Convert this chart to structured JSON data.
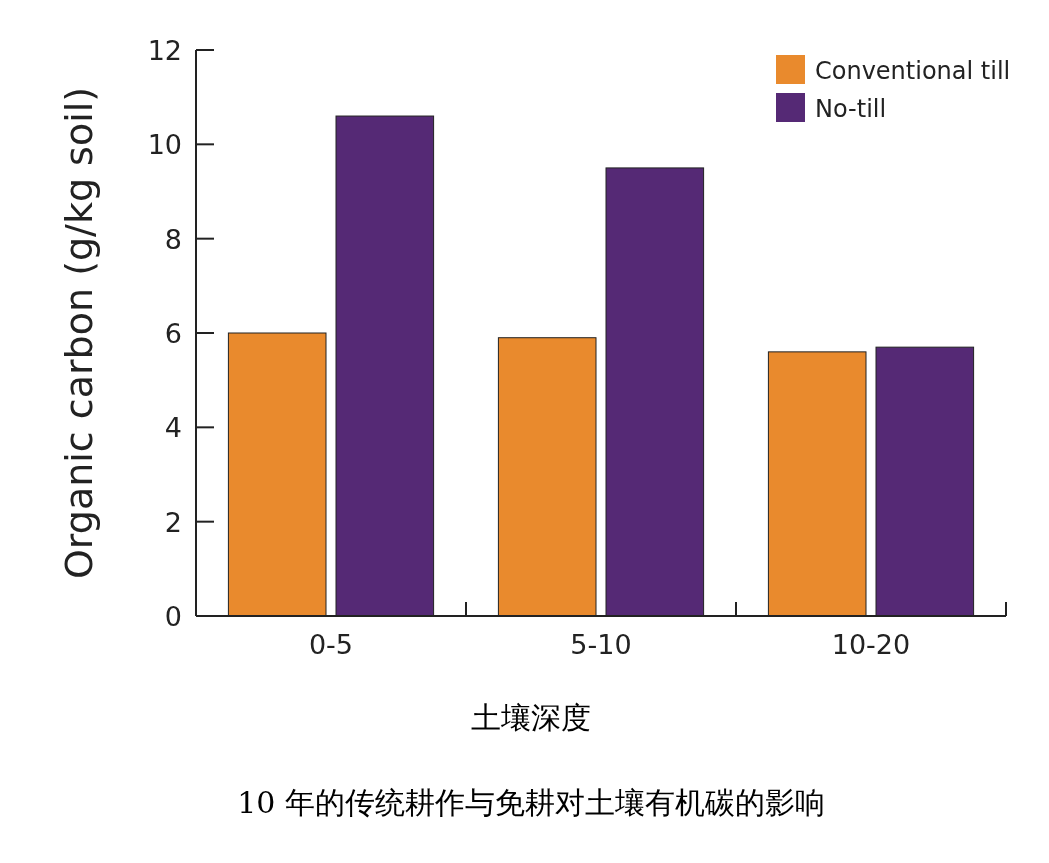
{
  "chart_data": {
    "type": "bar",
    "title": "10 年的传统耕作与免耕对土壤有机碳的影响",
    "xlabel": "土壤深度",
    "ylabel": "Organic carbon (g/kg soil)",
    "categories": [
      "0-5",
      "5-10",
      "10-20"
    ],
    "series": [
      {
        "name": "Conventional till",
        "color": "#e98a2d",
        "values": [
          6.0,
          5.9,
          5.6
        ]
      },
      {
        "name": "No-till",
        "color": "#552975",
        "values": [
          10.6,
          9.5,
          5.7
        ]
      }
    ],
    "ylim": [
      0,
      12
    ],
    "yticks": [
      0,
      2,
      4,
      6,
      8,
      10,
      12
    ],
    "legend": "top right"
  }
}
